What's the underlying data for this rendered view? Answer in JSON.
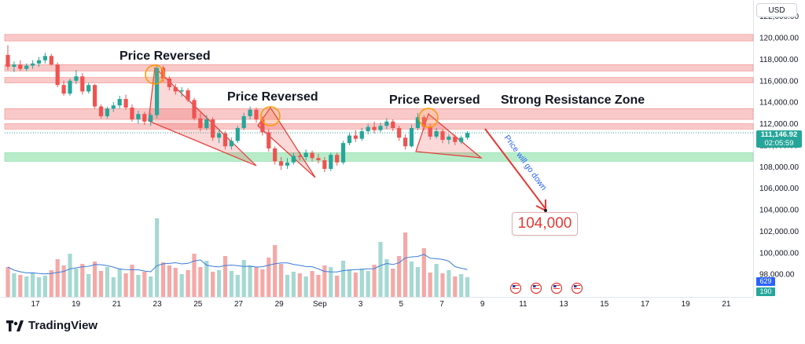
{
  "currency": "USD",
  "annotations": {
    "reversal_label": "Price Reversed",
    "resistance_label": "Strong Resistance Zone",
    "arrow_text": "Price will go down",
    "target": "104,000"
  },
  "price_badge": {
    "price": "111,146.92",
    "countdown": "02:05:59",
    "color": "#26a69a"
  },
  "volume_badges": [
    {
      "value": "629",
      "color": "#2962ff"
    },
    {
      "value": "190",
      "color": "#26a69a"
    }
  ],
  "brand": {
    "name": "TradingView"
  },
  "colors": {
    "up": "#26a69a",
    "down": "#ef5350",
    "resistance_zone": "#f9c9c9",
    "support_zone": "#b8ecc9",
    "vol_up": "#a5d9d2",
    "vol_down": "#f4a9a7",
    "vol_ma": "#3b7dd8"
  },
  "chart_data": {
    "type": "candlestick",
    "symbol_currency": "USD",
    "y_ticks": [
      "120,000.00",
      "118,000.00",
      "116,000.00",
      "114,000.00",
      "112,000.00",
      "110,000.00",
      "108,000.00",
      "106,000.00",
      "104,000.00",
      "102,000.00",
      "100,000.00",
      "98,000.00"
    ],
    "y_top_partial_label": "122,000.00",
    "ylim": [
      96500,
      122000
    ],
    "x_ticks": [
      "17",
      "19",
      "21",
      "23",
      "25",
      "27",
      "29",
      "Sep",
      "3",
      "5",
      "7",
      "9",
      "11",
      "13",
      "15",
      "17",
      "19",
      "21"
    ],
    "zones": [
      {
        "kind": "resistance",
        "from": 119700,
        "to": 120300
      },
      {
        "kind": "resistance",
        "from": 116900,
        "to": 117500
      },
      {
        "kind": "resistance",
        "from": 115800,
        "to": 116300
      },
      {
        "kind": "resistance",
        "from": 112400,
        "to": 113400
      },
      {
        "kind": "resistance",
        "from": 111500,
        "to": 112000
      },
      {
        "kind": "support",
        "from": 108500,
        "to": 109300
      }
    ],
    "current_price": 111146.92,
    "target_price": 104000,
    "candles": [
      {
        "o": 118400,
        "h": 119300,
        "l": 117000,
        "c": 117300
      },
      {
        "o": 117300,
        "h": 117800,
        "l": 116800,
        "c": 117500
      },
      {
        "o": 117500,
        "h": 117900,
        "l": 116900,
        "c": 117100
      },
      {
        "o": 117100,
        "h": 117600,
        "l": 116900,
        "c": 117400
      },
      {
        "o": 117400,
        "h": 117900,
        "l": 117100,
        "c": 117600
      },
      {
        "o": 117600,
        "h": 118200,
        "l": 117300,
        "c": 117900
      },
      {
        "o": 117900,
        "h": 118600,
        "l": 117600,
        "c": 118300
      },
      {
        "o": 118300,
        "h": 118500,
        "l": 117400,
        "c": 117500
      },
      {
        "o": 117500,
        "h": 117700,
        "l": 115400,
        "c": 115600
      },
      {
        "o": 115600,
        "h": 116000,
        "l": 114600,
        "c": 114800
      },
      {
        "o": 114800,
        "h": 116200,
        "l": 114600,
        "c": 116000
      },
      {
        "o": 116000,
        "h": 117000,
        "l": 115700,
        "c": 116400
      },
      {
        "o": 116400,
        "h": 116700,
        "l": 114700,
        "c": 115000
      },
      {
        "o": 115000,
        "h": 115800,
        "l": 114800,
        "c": 115600
      },
      {
        "o": 115600,
        "h": 115700,
        "l": 113400,
        "c": 113600
      },
      {
        "o": 113600,
        "h": 113800,
        "l": 112500,
        "c": 112700
      },
      {
        "o": 112700,
        "h": 113600,
        "l": 112500,
        "c": 113400
      },
      {
        "o": 113400,
        "h": 114000,
        "l": 113100,
        "c": 113700
      },
      {
        "o": 113700,
        "h": 114600,
        "l": 113400,
        "c": 114300
      },
      {
        "o": 114300,
        "h": 114700,
        "l": 113300,
        "c": 113500
      },
      {
        "o": 113500,
        "h": 113800,
        "l": 112200,
        "c": 112400
      },
      {
        "o": 112400,
        "h": 113200,
        "l": 112000,
        "c": 112900
      },
      {
        "o": 112900,
        "h": 113100,
        "l": 111900,
        "c": 112200
      },
      {
        "o": 112200,
        "h": 113000,
        "l": 111800,
        "c": 112800
      },
      {
        "o": 112800,
        "h": 117500,
        "l": 112500,
        "c": 117200
      },
      {
        "o": 117200,
        "h": 117400,
        "l": 115900,
        "c": 116200
      },
      {
        "o": 116200,
        "h": 116400,
        "l": 115100,
        "c": 115400
      },
      {
        "o": 115400,
        "h": 115700,
        "l": 114700,
        "c": 115000
      },
      {
        "o": 115000,
        "h": 115400,
        "l": 114500,
        "c": 115100
      },
      {
        "o": 115100,
        "h": 115300,
        "l": 114000,
        "c": 114200
      },
      {
        "o": 114200,
        "h": 114400,
        "l": 112300,
        "c": 112500
      },
      {
        "o": 112500,
        "h": 113000,
        "l": 111300,
        "c": 111600
      },
      {
        "o": 111600,
        "h": 112800,
        "l": 111400,
        "c": 112400
      },
      {
        "o": 112400,
        "h": 112600,
        "l": 110400,
        "c": 110700
      },
      {
        "o": 110700,
        "h": 111500,
        "l": 110200,
        "c": 111100
      },
      {
        "o": 111100,
        "h": 111300,
        "l": 109600,
        "c": 109900
      },
      {
        "o": 109900,
        "h": 110700,
        "l": 109600,
        "c": 110400
      },
      {
        "o": 110400,
        "h": 111800,
        "l": 110200,
        "c": 111600
      },
      {
        "o": 111600,
        "h": 113000,
        "l": 111400,
        "c": 112700
      },
      {
        "o": 112700,
        "h": 113600,
        "l": 112400,
        "c": 113300
      },
      {
        "o": 113300,
        "h": 113500,
        "l": 112100,
        "c": 112400
      },
      {
        "o": 112400,
        "h": 112700,
        "l": 110900,
        "c": 111200
      },
      {
        "o": 111200,
        "h": 111500,
        "l": 109400,
        "c": 109700
      },
      {
        "o": 109700,
        "h": 109900,
        "l": 108200,
        "c": 108500
      },
      {
        "o": 108500,
        "h": 108900,
        "l": 107700,
        "c": 108100
      },
      {
        "o": 108100,
        "h": 108800,
        "l": 107800,
        "c": 108400
      },
      {
        "o": 108400,
        "h": 109300,
        "l": 108200,
        "c": 109000
      },
      {
        "o": 109000,
        "h": 109400,
        "l": 108600,
        "c": 108900
      },
      {
        "o": 108900,
        "h": 109600,
        "l": 108600,
        "c": 109300
      },
      {
        "o": 109300,
        "h": 109500,
        "l": 108500,
        "c": 108800
      },
      {
        "o": 108800,
        "h": 109200,
        "l": 108300,
        "c": 108600
      },
      {
        "o": 108600,
        "h": 108900,
        "l": 107500,
        "c": 107800
      },
      {
        "o": 107800,
        "h": 109300,
        "l": 107600,
        "c": 109100
      },
      {
        "o": 109100,
        "h": 109300,
        "l": 108100,
        "c": 108400
      },
      {
        "o": 108400,
        "h": 110400,
        "l": 108200,
        "c": 110200
      },
      {
        "o": 110200,
        "h": 111200,
        "l": 110000,
        "c": 110900
      },
      {
        "o": 110900,
        "h": 111400,
        "l": 110300,
        "c": 110600
      },
      {
        "o": 110600,
        "h": 111600,
        "l": 110400,
        "c": 111300
      },
      {
        "o": 111300,
        "h": 112000,
        "l": 111000,
        "c": 111700
      },
      {
        "o": 111700,
        "h": 112200,
        "l": 111100,
        "c": 111400
      },
      {
        "o": 111400,
        "h": 112100,
        "l": 111200,
        "c": 111800
      },
      {
        "o": 111800,
        "h": 112500,
        "l": 111500,
        "c": 112200
      },
      {
        "o": 112200,
        "h": 112400,
        "l": 111300,
        "c": 111600
      },
      {
        "o": 111600,
        "h": 111800,
        "l": 110400,
        "c": 110700
      },
      {
        "o": 110700,
        "h": 111000,
        "l": 109600,
        "c": 109900
      },
      {
        "o": 109900,
        "h": 111900,
        "l": 109800,
        "c": 111600
      },
      {
        "o": 111600,
        "h": 113000,
        "l": 111400,
        "c": 112600
      },
      {
        "o": 112600,
        "h": 112800,
        "l": 111400,
        "c": 111700
      },
      {
        "o": 111700,
        "h": 112000,
        "l": 110500,
        "c": 110800
      },
      {
        "o": 110800,
        "h": 111600,
        "l": 110600,
        "c": 111300
      },
      {
        "o": 111300,
        "h": 111500,
        "l": 110200,
        "c": 110500
      },
      {
        "o": 110500,
        "h": 111000,
        "l": 110100,
        "c": 110800
      },
      {
        "o": 110800,
        "h": 111000,
        "l": 110000,
        "c": 110300
      },
      {
        "o": 110300,
        "h": 110900,
        "l": 110100,
        "c": 110700
      },
      {
        "o": 110700,
        "h": 111300,
        "l": 110500,
        "c": 111147
      }
    ],
    "volumes": [
      38,
      30,
      28,
      26,
      31,
      25,
      27,
      34,
      48,
      40,
      55,
      36,
      42,
      29,
      45,
      33,
      38,
      25,
      36,
      30,
      41,
      28,
      32,
      26,
      100,
      44,
      40,
      37,
      29,
      34,
      55,
      38,
      46,
      32,
      34,
      52,
      33,
      28,
      47,
      40,
      38,
      35,
      50,
      66,
      42,
      28,
      32,
      30,
      26,
      33,
      28,
      40,
      38,
      27,
      46,
      35,
      31,
      36,
      33,
      41,
      70,
      48,
      36,
      52,
      82,
      45,
      38,
      62,
      31,
      42,
      30,
      34,
      26,
      29,
      25
    ],
    "vol_max": 100
  }
}
